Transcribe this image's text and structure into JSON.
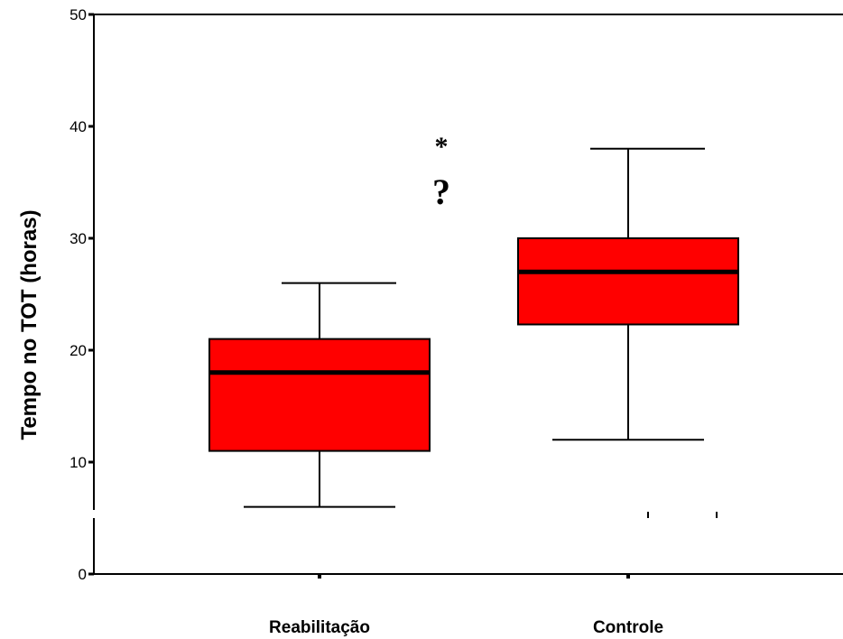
{
  "chart_data": {
    "type": "box",
    "ylabel": "Tempo no TOT (horas)",
    "ylim": [
      0,
      50
    ],
    "yticks": [
      "0",
      "10",
      "20",
      "30",
      "40",
      "50"
    ],
    "y_axis_break": true,
    "categories": [
      "Reabilitação",
      "Controle"
    ],
    "boxes": [
      {
        "category": "Reabilitação",
        "whisker_low": 6,
        "q1": 11,
        "median": 18,
        "q3": 21,
        "whisker_high": 26
      },
      {
        "category": "Controle",
        "whisker_low": 12,
        "q1": 22.3,
        "median": 27,
        "q3": 30,
        "whisker_high": 38
      }
    ],
    "box_color": "#ff0000",
    "annotations": [
      "*",
      "?"
    ]
  }
}
